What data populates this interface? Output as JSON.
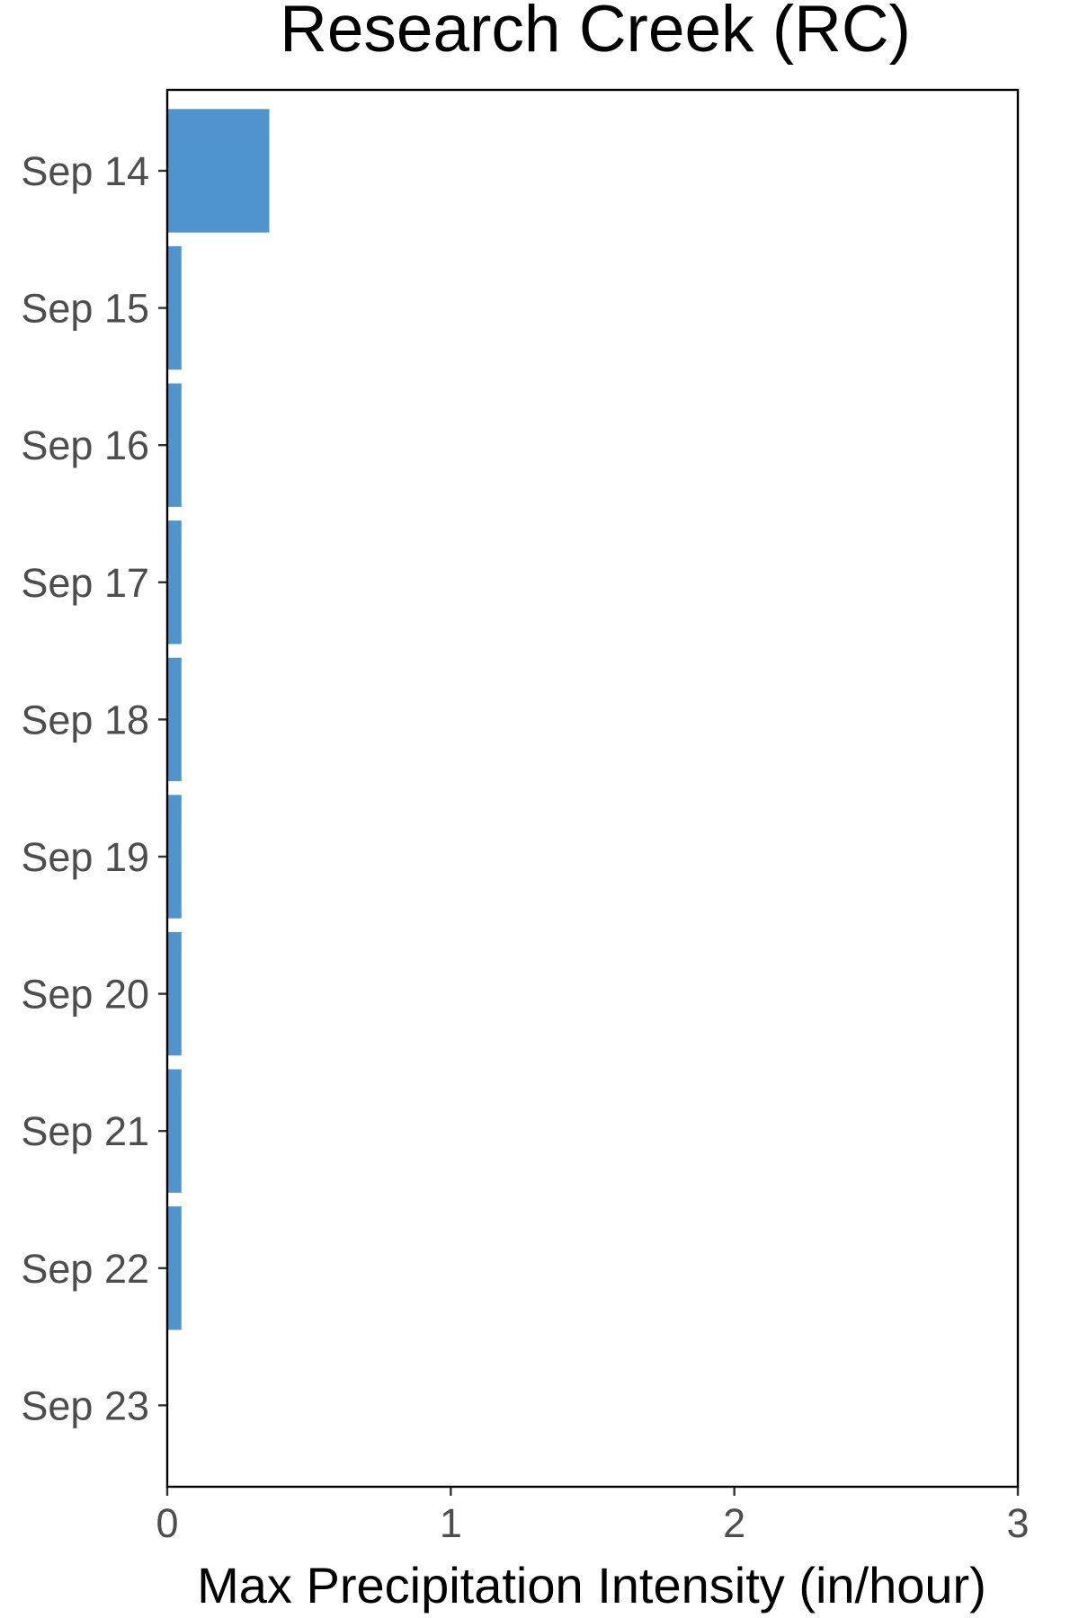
{
  "chart_data": {
    "type": "bar",
    "orientation": "horizontal",
    "title": "Research Creek (RC)",
    "xlabel": "Max Precipitation Intensity (in/hour)",
    "ylabel": "",
    "categories": [
      "Sep 14",
      "Sep 15",
      "Sep 16",
      "Sep 17",
      "Sep 18",
      "Sep 19",
      "Sep 20",
      "Sep 21",
      "Sep 22",
      "Sep 23"
    ],
    "values": [
      0.36,
      0.05,
      0.05,
      0.05,
      0.05,
      0.05,
      0.05,
      0.05,
      0.05,
      0
    ],
    "xlim": [
      0,
      3
    ],
    "xticks": [
      "0",
      "1",
      "2",
      "3"
    ],
    "bar_color": "#4f94cd",
    "grid": false,
    "legend": "none"
  }
}
